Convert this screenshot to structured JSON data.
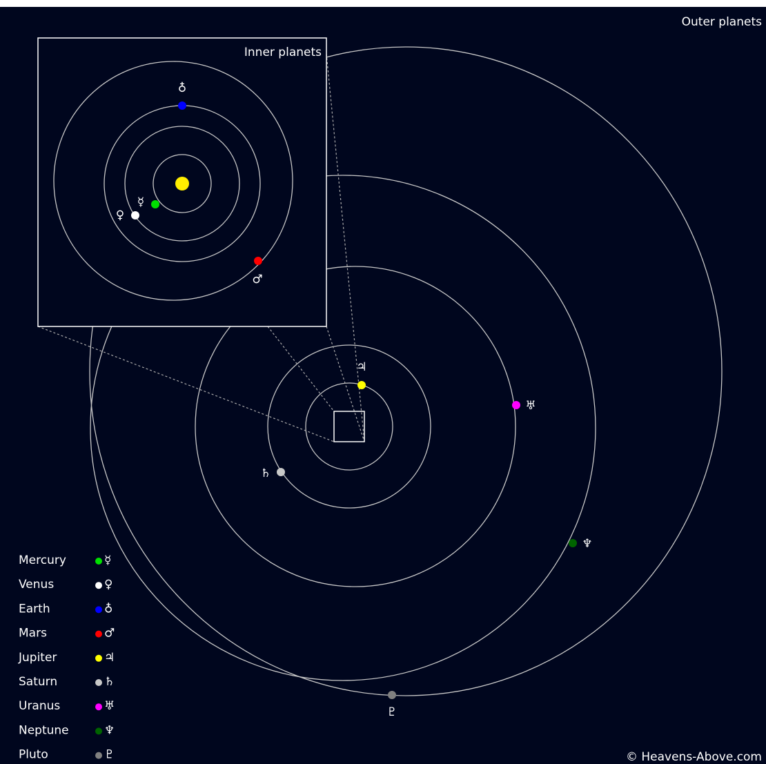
{
  "header": {
    "outer_label": "Outer planets",
    "inner_label": "Inner planets"
  },
  "legend": [
    {
      "name": "Mercury",
      "symbol": "☿",
      "color": "#00e000"
    },
    {
      "name": "Venus",
      "symbol": "♀",
      "color": "#ffffff"
    },
    {
      "name": "Earth",
      "symbol": "♁",
      "color": "#0000ff"
    },
    {
      "name": "Mars",
      "symbol": "♂",
      "color": "#ff0000"
    },
    {
      "name": "Jupiter",
      "symbol": "♃",
      "color": "#ffff00"
    },
    {
      "name": "Saturn",
      "symbol": "♄",
      "color": "#c8c8c8"
    },
    {
      "name": "Uranus",
      "symbol": "♅",
      "color": "#ff00ff"
    },
    {
      "name": "Neptune",
      "symbol": "♆",
      "color": "#006400"
    },
    {
      "name": "Pluto",
      "symbol": "♇",
      "color": "#808080"
    }
  ],
  "credit": "© Heavens-Above.com"
}
